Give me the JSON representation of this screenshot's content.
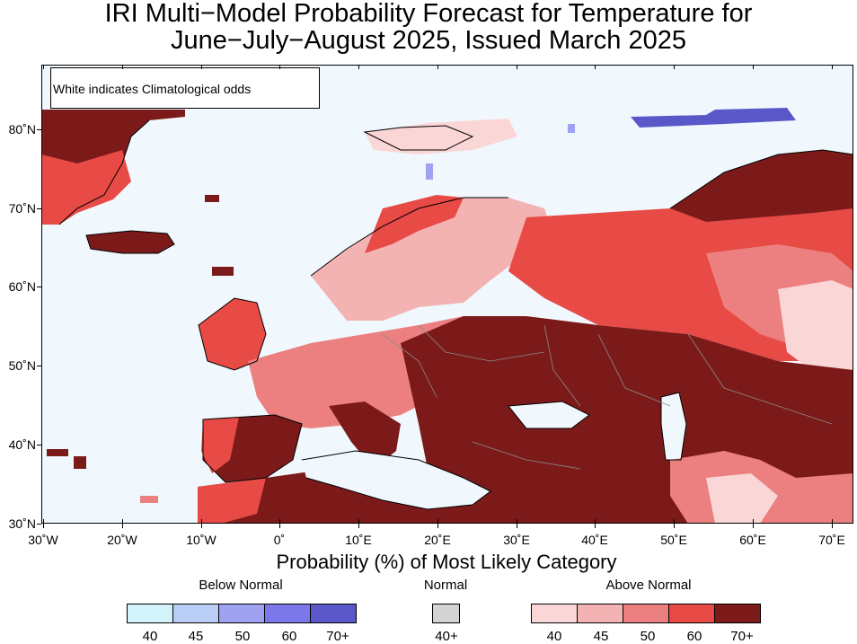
{
  "title_line1": "IRI Multi−Model Probability Forecast for Temperature for",
  "title_line2": "June−July−August 2025, Issued March 2025",
  "map_note": "White indicates Climatological odds",
  "lat_labels": [
    "80˚N",
    "70˚N",
    "60˚N",
    "50˚N",
    "40˚N",
    "30˚N"
  ],
  "lon_labels": [
    "30˚W",
    "20˚W",
    "10˚W",
    "0˚",
    "10˚E",
    "20˚E",
    "30˚E",
    "40˚E",
    "50˚E",
    "60˚E",
    "70˚E"
  ],
  "axis_title": "Probability (%) of Most Likely Category",
  "categories": {
    "below": "Below Normal",
    "normal": "Normal",
    "above": "Above Normal"
  },
  "legend": {
    "below_ticks": [
      "40",
      "45",
      "50",
      "60",
      "70+"
    ],
    "normal_ticks": [
      "40+"
    ],
    "above_ticks": [
      "40",
      "45",
      "50",
      "60",
      "70+"
    ]
  },
  "colors": {
    "ocean": "#f0f8fd",
    "below": [
      "#d2f3f9",
      "#b9cdf5",
      "#9fa2f1",
      "#7d78ea",
      "#5a58c9"
    ],
    "normal": "#d3d3d3",
    "above": [
      "#fad6d6",
      "#f3b3b3",
      "#ec8080",
      "#e84a45",
      "#7c1a1a"
    ]
  }
}
